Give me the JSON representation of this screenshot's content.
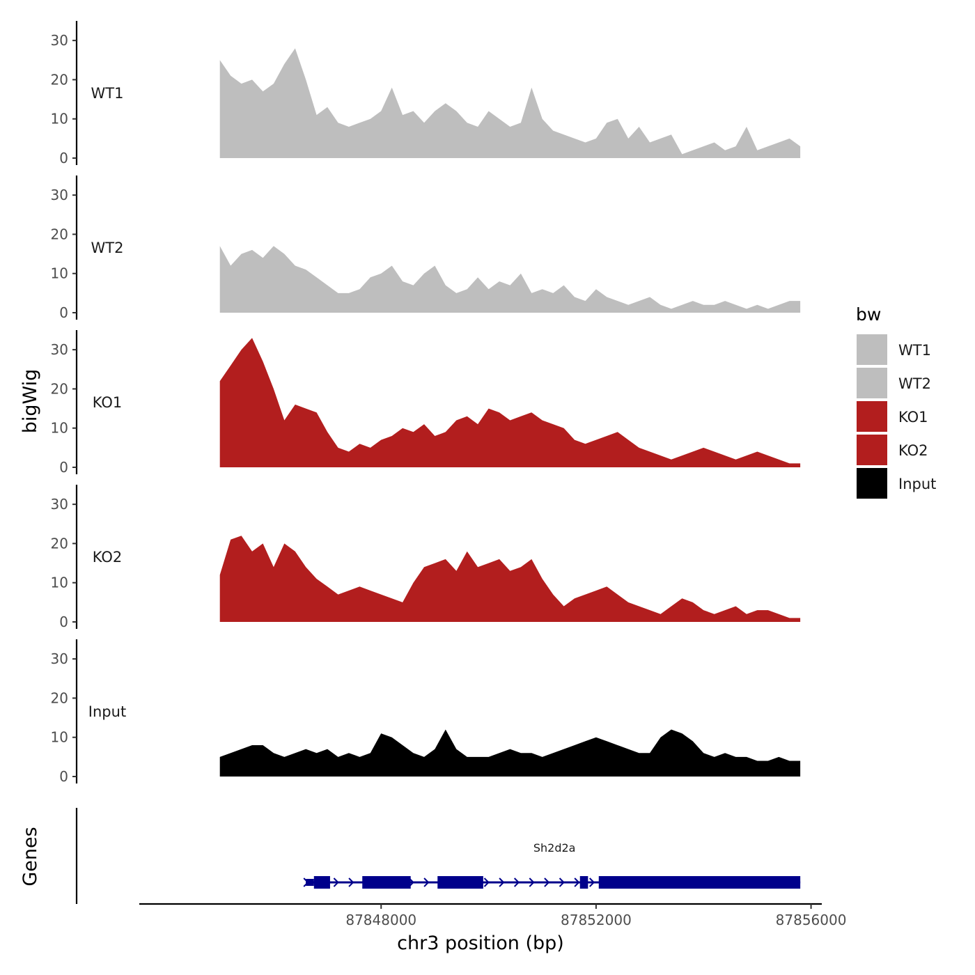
{
  "chart_data": {
    "type": "area",
    "title": "",
    "xlabel": "chr3 position (bp)",
    "ylabel": "bigWig",
    "genes_label": "Genes",
    "chromosome": "chr3",
    "xlim": [
      87843500,
      87856200
    ],
    "xticks": [
      87848000,
      87852000,
      87856000
    ],
    "xtick_labels": [
      "87848000",
      "87852000",
      "87856000"
    ],
    "ylim": [
      0,
      35
    ],
    "yticks": [
      0,
      10,
      20,
      30
    ],
    "ytick_labels": [
      "0",
      "10",
      "20",
      "30"
    ],
    "legend": {
      "title": "bw",
      "position": "right",
      "entries": [
        {
          "label": "WT1",
          "color": "#bebebe"
        },
        {
          "label": "WT2",
          "color": "#bebebe"
        },
        {
          "label": "KO1",
          "color": "#b21e1e"
        },
        {
          "label": "KO2",
          "color": "#b21e1e"
        },
        {
          "label": "Input",
          "color": "#000000"
        }
      ]
    },
    "x": [
      87845000,
      87845200,
      87845400,
      87845600,
      87845800,
      87846000,
      87846200,
      87846400,
      87846600,
      87846800,
      87847000,
      87847200,
      87847400,
      87847600,
      87847800,
      87848000,
      87848200,
      87848400,
      87848600,
      87848800,
      87849000,
      87849200,
      87849400,
      87849600,
      87849800,
      87850000,
      87850200,
      87850400,
      87850600,
      87850800,
      87851000,
      87851200,
      87851400,
      87851600,
      87851800,
      87852000,
      87852200,
      87852400,
      87852600,
      87852800,
      87853000,
      87853200,
      87853400,
      87853600,
      87853800,
      87854000,
      87854200,
      87854400,
      87854600,
      87854800,
      87855000,
      87855200,
      87855400,
      87855600,
      87855800
    ],
    "series": [
      {
        "name": "WT1",
        "color": "#bebebe",
        "values": [
          25,
          21,
          19,
          20,
          17,
          19,
          24,
          28,
          20,
          11,
          13,
          9,
          8,
          9,
          10,
          12,
          18,
          11,
          12,
          9,
          12,
          14,
          12,
          9,
          8,
          12,
          10,
          8,
          9,
          18,
          10,
          7,
          6,
          5,
          4,
          5,
          9,
          10,
          5,
          8,
          4,
          5,
          6,
          1,
          2,
          3,
          4,
          2,
          3,
          8,
          2,
          3,
          4,
          5,
          3
        ]
      },
      {
        "name": "WT2",
        "color": "#bebebe",
        "values": [
          17,
          12,
          15,
          16,
          14,
          17,
          15,
          12,
          11,
          9,
          7,
          5,
          5,
          6,
          9,
          10,
          12,
          8,
          7,
          10,
          12,
          7,
          5,
          6,
          9,
          6,
          8,
          7,
          10,
          5,
          6,
          5,
          7,
          4,
          3,
          6,
          4,
          3,
          2,
          3,
          4,
          2,
          1,
          2,
          3,
          2,
          2,
          3,
          2,
          1,
          2,
          1,
          2,
          3,
          3
        ]
      },
      {
        "name": "KO1",
        "color": "#b21e1e",
        "values": [
          22,
          26,
          30,
          33,
          27,
          20,
          12,
          16,
          15,
          14,
          9,
          5,
          4,
          6,
          5,
          7,
          8,
          10,
          9,
          11,
          8,
          9,
          12,
          13,
          11,
          15,
          14,
          12,
          13,
          14,
          12,
          11,
          10,
          7,
          6,
          7,
          8,
          9,
          7,
          5,
          4,
          3,
          2,
          3,
          4,
          5,
          4,
          3,
          2,
          3,
          4,
          3,
          2,
          1,
          1
        ]
      },
      {
        "name": "KO2",
        "color": "#b21e1e",
        "values": [
          12,
          21,
          22,
          18,
          20,
          14,
          20,
          18,
          14,
          11,
          9,
          7,
          8,
          9,
          8,
          7,
          6,
          5,
          10,
          14,
          15,
          16,
          13,
          18,
          14,
          15,
          16,
          13,
          14,
          16,
          11,
          7,
          4,
          6,
          7,
          8,
          9,
          7,
          5,
          4,
          3,
          2,
          4,
          6,
          5,
          3,
          2,
          3,
          4,
          2,
          3,
          3,
          2,
          1,
          1
        ]
      },
      {
        "name": "Input",
        "color": "#000000",
        "values": [
          5,
          6,
          7,
          8,
          8,
          6,
          5,
          6,
          7,
          6,
          7,
          5,
          6,
          5,
          6,
          11,
          10,
          8,
          6,
          5,
          7,
          12,
          7,
          5,
          5,
          5,
          6,
          7,
          6,
          6,
          5,
          6,
          7,
          8,
          9,
          10,
          9,
          8,
          7,
          6,
          6,
          10,
          12,
          11,
          9,
          6,
          5,
          6,
          5,
          5,
          4,
          4,
          5,
          4,
          4
        ]
      }
    ],
    "gene_track": {
      "gene_name": "Sh2d2a",
      "strand": "+",
      "start": 87846600,
      "end": 87855800,
      "exons": [
        {
          "start": 87846600,
          "end": 87846750,
          "kind": "utr"
        },
        {
          "start": 87846750,
          "end": 87847050,
          "kind": "cds"
        },
        {
          "start": 87847650,
          "end": 87848550,
          "kind": "cds"
        },
        {
          "start": 87849050,
          "end": 87849900,
          "kind": "cds"
        },
        {
          "start": 87851700,
          "end": 87851850,
          "kind": "cds"
        },
        {
          "start": 87852050,
          "end": 87855800,
          "kind": "cds"
        }
      ]
    }
  }
}
